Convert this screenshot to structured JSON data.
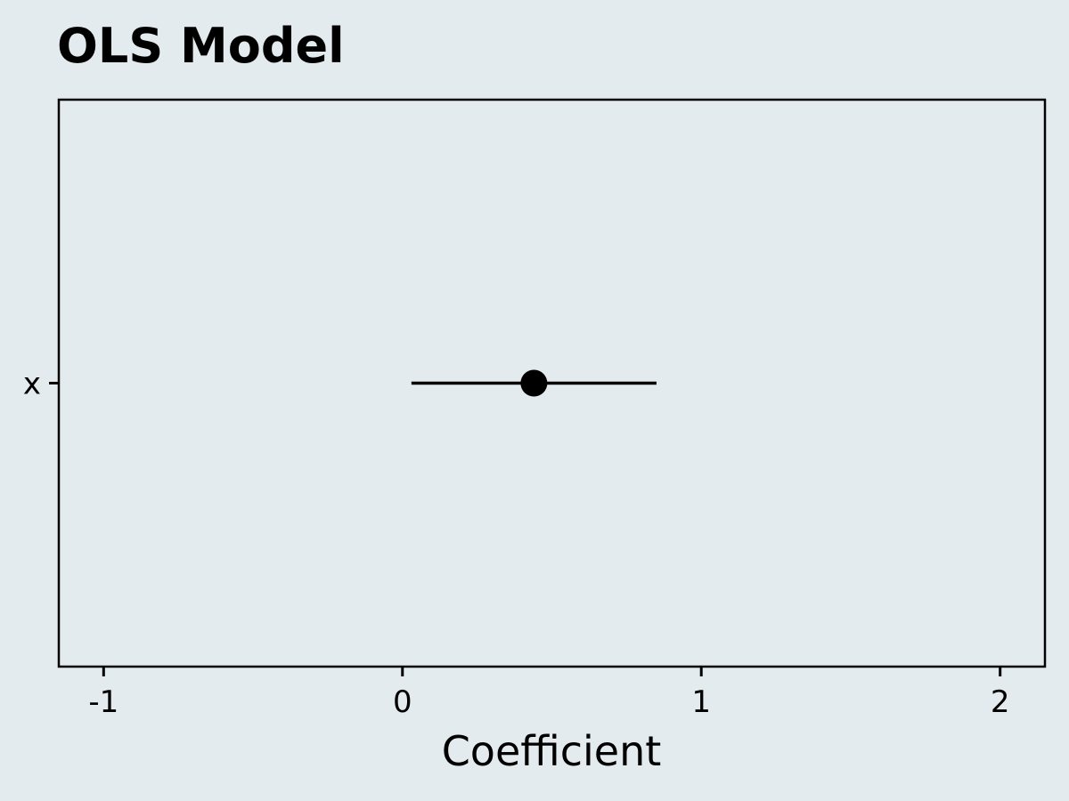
{
  "chart_data": {
    "type": "scatter",
    "title": "OLS Model",
    "xlabel": "Coefficient",
    "ylabel": "",
    "xlim": [
      -1.15,
      2.15
    ],
    "x_ticks": [
      -1,
      0,
      1,
      2
    ],
    "x_tick_labels": [
      "-1",
      "0",
      "1",
      "2"
    ],
    "categories": [
      "x"
    ],
    "series": [
      {
        "estimates": [
          0.44
        ],
        "ci_low": [
          0.03
        ],
        "ci_high": [
          0.85
        ]
      }
    ],
    "grid": false,
    "legend": "none"
  },
  "colors": {
    "background": "#e4ebef",
    "panel": "#e4ebef",
    "marks": "#000000"
  }
}
